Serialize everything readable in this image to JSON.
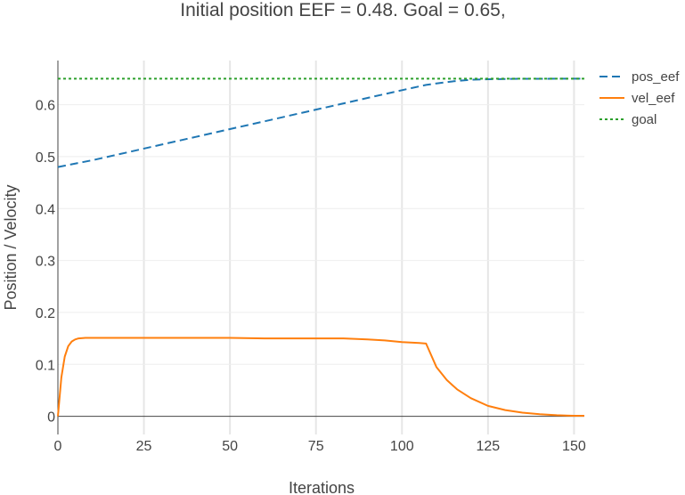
{
  "chart_data": {
    "type": "line",
    "title": "Initial position EEF = 0.48.  Goal = 0.65,",
    "xlabel": "Iterations",
    "ylabel": "Position / Velocity",
    "xlim": [
      0,
      153
    ],
    "ylim": [
      -0.035,
      0.685
    ],
    "xticks": [
      0,
      25,
      50,
      75,
      100,
      125,
      150
    ],
    "xtick_labels": [
      "0",
      "25",
      "50",
      "75",
      "100",
      "125",
      "150"
    ],
    "yticks": [
      0,
      0.1,
      0.2,
      0.3,
      0.4,
      0.5,
      0.6
    ],
    "ytick_labels": [
      "0",
      "0.1",
      "0.2",
      "0.3",
      "0.4",
      "0.5",
      "0.6"
    ],
    "grid": true,
    "legend_position": "top-right outside",
    "series": [
      {
        "name": "pos_eef",
        "color": "#1f77b4",
        "dash": "dash",
        "x": [
          0,
          10,
          20,
          30,
          40,
          50,
          60,
          70,
          80,
          90,
          100,
          107,
          110,
          115,
          120,
          125,
          130,
          135,
          140,
          145,
          150,
          153
        ],
        "y": [
          0.48,
          0.493,
          0.508,
          0.523,
          0.538,
          0.553,
          0.568,
          0.583,
          0.598,
          0.613,
          0.628,
          0.638,
          0.641,
          0.645,
          0.648,
          0.649,
          0.6495,
          0.6498,
          0.6499,
          0.65,
          0.65,
          0.65
        ]
      },
      {
        "name": "vel_eef",
        "color": "#ff7f0e",
        "dash": "solid",
        "x": [
          0,
          1,
          2,
          3,
          4,
          5,
          6,
          8,
          10,
          20,
          30,
          40,
          50,
          60,
          70,
          80,
          83,
          90,
          95,
          100,
          105,
          107,
          110,
          113,
          116,
          120,
          125,
          130,
          135,
          140,
          145,
          150,
          153
        ],
        "y": [
          0,
          0.075,
          0.115,
          0.135,
          0.144,
          0.148,
          0.15,
          0.151,
          0.151,
          0.151,
          0.151,
          0.151,
          0.151,
          0.15,
          0.15,
          0.15,
          0.15,
          0.148,
          0.146,
          0.143,
          0.141,
          0.14,
          0.095,
          0.07,
          0.052,
          0.035,
          0.02,
          0.012,
          0.007,
          0.004,
          0.002,
          0.001,
          0.001
        ]
      },
      {
        "name": "goal",
        "color": "#2ca02c",
        "dash": "dot",
        "x": [
          0,
          153
        ],
        "y": [
          0.65,
          0.65
        ]
      }
    ]
  }
}
